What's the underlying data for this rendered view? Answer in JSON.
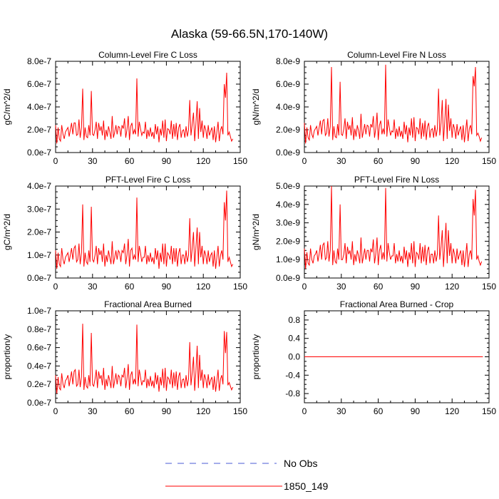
{
  "figure_title": "Alaska (59-66.5N,170-140W)",
  "legend": [
    {
      "label": "No Obs",
      "style": "dashed",
      "color": "#4a5bd4"
    },
    {
      "label": "1850_149",
      "style": "solid",
      "color": "#ff0000"
    }
  ],
  "series_color": "#ff0000",
  "chart_data": [
    {
      "type": "line",
      "title": "Column-Level Fire C Loss",
      "ylabel": "gC/m^2/d",
      "xlim": [
        0,
        150
      ],
      "ylim": [
        0,
        8e-07
      ],
      "xticks": [
        "0",
        "30",
        "60",
        "90",
        "120",
        "150"
      ],
      "yticks": [
        "0.0e-7",
        "2.0e-7",
        "4.0e-7",
        "6.0e-7",
        "8.0e-7"
      ],
      "x_start": 0,
      "series": [
        {
          "name": "1850_149",
          "values": [
            2.4e-07,
            8e-08,
            2.2e-07,
            1.2e-07,
            1e-07,
            2.4e-07,
            1.6e-07,
            1.2e-07,
            1.8e-07,
            2e-07,
            2.2e-07,
            1.4e-07,
            2e-07,
            2.6e-07,
            1.6e-07,
            2.6e-07,
            2.6e-07,
            1.5e-07,
            1.6e-07,
            2.9e-07,
            1.3e-07,
            2.2e-07,
            5.6e-07,
            1.1e-07,
            2.2e-07,
            1.4e-07,
            1.3e-07,
            2.4e-07,
            1.5e-07,
            5.4e-07,
            1.6e-07,
            1.5e-07,
            2e-07,
            2.7e-07,
            1.2e-07,
            2.6e-07,
            1.9e-07,
            2.3e-07,
            1.5e-07,
            2.8e-07,
            1.1e-07,
            2e-07,
            1.4e-07,
            2.3e-07,
            1.8e-07,
            1.2e-07,
            3.2e-07,
            1.3e-07,
            1.8e-07,
            2.4e-07,
            1.6e-07,
            2.3e-07,
            2.2e-07,
            1.4e-07,
            2.4e-07,
            2.1e-07,
            3e-07,
            1.3e-07,
            2e-07,
            3.2e-07,
            1.1e-07,
            2.3e-07,
            2.6e-07,
            1.6e-07,
            2e-07,
            1.6e-07,
            6.5e-07,
            1.4e-07,
            2.7e-07,
            2.1e-07,
            1.5e-07,
            1.8e-07,
            1.7e-07,
            2.7e-07,
            1.2e-07,
            2e-07,
            1.4e-07,
            2.2e-07,
            1.4e-07,
            1.8e-07,
            1.2e-07,
            2.5e-07,
            1.6e-07,
            2.3e-07,
            9e-08,
            2.1e-07,
            1.5e-07,
            2.8e-07,
            1.3e-07,
            2.9e-07,
            1e-07,
            2.1e-07,
            2e-07,
            1.6e-07,
            2.8e-07,
            1.2e-07,
            2.5e-07,
            1.4e-07,
            2.6e-07,
            1.1e-07,
            2.2e-07,
            2.5e-07,
            1.3e-07,
            1.9e-07,
            2e-07,
            1.3e-07,
            2.3e-07,
            1.4e-07,
            2e-07,
            4.6e-07,
            1.5e-07,
            2.5e-07,
            3.5e-07,
            1e-07,
            2.5e-07,
            4.5e-07,
            1.2e-07,
            3.9e-07,
            1.8e-07,
            2.8e-07,
            1.3e-07,
            2.4e-07,
            2e-07,
            1.2e-07,
            2.4e-07,
            1.5e-07,
            1.9e-07,
            2.2e-07,
            1.1e-07,
            2.3e-07,
            9e-08,
            1.8e-07,
            2.7e-07,
            1e-07,
            2e-07,
            2.3e-07,
            1.6e-07,
            6e-07,
            4.8e-07,
            7e-07,
            1.5e-07,
            1.8e-07,
            1.4e-07,
            1e-07,
            1.2e-07
          ]
        }
      ]
    },
    {
      "type": "line",
      "title": "Column-Level Fire N Loss",
      "ylabel": "gN/m^2/d",
      "xlim": [
        0,
        150
      ],
      "ylim": [
        0,
        8e-09
      ],
      "xticks": [
        "0",
        "30",
        "60",
        "90",
        "120",
        "150"
      ],
      "yticks": [
        "0.0e-9",
        "2.0e-9",
        "4.0e-9",
        "6.0e-9",
        "8.0e-9"
      ],
      "x_start": 0,
      "series": [
        {
          "name": "1850_149",
          "values": [
            2.6e-09,
            8e-10,
            2.2e-09,
            1.3e-09,
            1.1e-09,
            2.4e-09,
            1.6e-09,
            1.3e-09,
            1.9e-09,
            2.1e-09,
            2.3e-09,
            1.5e-09,
            2.2e-09,
            2.8e-09,
            1.6e-09,
            2.8e-09,
            2.9e-09,
            1.5e-09,
            1.7e-09,
            3e-09,
            1.4e-09,
            2.3e-09,
            7.5e-09,
            1.1e-09,
            2.3e-09,
            1.4e-09,
            1.3e-09,
            2.5e-09,
            1.5e-09,
            6.2e-09,
            1.6e-09,
            1.5e-09,
            2.1e-09,
            3e-09,
            1.2e-09,
            2.7e-09,
            2e-09,
            2.4e-09,
            1.5e-09,
            3.1e-09,
            1.1e-09,
            2.1e-09,
            1.4e-09,
            2.4e-09,
            1.9e-09,
            1.2e-09,
            3.4e-09,
            1.3e-09,
            1.9e-09,
            2.5e-09,
            1.6e-09,
            2.4e-09,
            2.3e-09,
            1.4e-09,
            2.5e-09,
            2.2e-09,
            3.2e-09,
            1.3e-09,
            2.1e-09,
            3.5e-09,
            1.1e-09,
            2.4e-09,
            2.8e-09,
            1.6e-09,
            2.1e-09,
            1.6e-09,
            7.7e-09,
            1.4e-09,
            2.9e-09,
            2.2e-09,
            1.5e-09,
            1.9e-09,
            1.8e-09,
            2.9e-09,
            1.2e-09,
            2.1e-09,
            1.4e-09,
            2.3e-09,
            1.4e-09,
            1.9e-09,
            1.2e-09,
            2.7e-09,
            1.6e-09,
            2.4e-09,
            9e-10,
            2.2e-09,
            1.5e-09,
            3e-09,
            1.3e-09,
            3.1e-09,
            1e-09,
            2.2e-09,
            2.1e-09,
            1.6e-09,
            3e-09,
            1.2e-09,
            2.6e-09,
            1.4e-09,
            2.8e-09,
            1.1e-09,
            2.3e-09,
            2.6e-09,
            1.3e-09,
            2e-09,
            2.1e-09,
            1.3e-09,
            2.4e-09,
            1.4e-09,
            2.1e-09,
            5.6e-09,
            1.5e-09,
            2.6e-09,
            4.6e-09,
            1e-09,
            2.6e-09,
            4.7e-09,
            1.2e-09,
            4.2e-09,
            1.9e-09,
            3e-09,
            1.3e-09,
            2.5e-09,
            2.1e-09,
            1.2e-09,
            2.5e-09,
            1.5e-09,
            2e-09,
            2.3e-09,
            1.1e-09,
            2.4e-09,
            9e-10,
            1.9e-09,
            2.9e-09,
            1e-09,
            2.1e-09,
            2.4e-09,
            1.6e-09,
            6.7e-09,
            5.8e-09,
            7.5e-09,
            1.5e-09,
            1.7e-09,
            1.4e-09,
            1e-09,
            1.3e-09
          ]
        }
      ]
    },
    {
      "type": "line",
      "title": "PFT-Level Fire C Loss",
      "ylabel": "gC/m^2/d",
      "xlim": [
        0,
        150
      ],
      "ylim": [
        0,
        4e-07
      ],
      "xticks": [
        "0",
        "30",
        "60",
        "90",
        "120",
        "150"
      ],
      "yticks": [
        "0.0e-7",
        "1.0e-7",
        "2.0e-7",
        "3.0e-7",
        "4.0e-7"
      ],
      "x_start": 0,
      "series": [
        {
          "name": "1850_149",
          "values": [
            1.2e-07,
            4e-08,
            1.1e-07,
            6e-08,
            5e-08,
            1.3e-07,
            8e-08,
            6e-08,
            9e-08,
            1e-07,
            1.1e-07,
            7e-08,
            1e-07,
            1.3e-07,
            8e-08,
            1.3e-07,
            1.4e-07,
            7e-08,
            8e-08,
            1.5e-07,
            6e-08,
            1.1e-07,
            3.2e-07,
            5e-08,
            1.1e-07,
            7e-08,
            6e-08,
            1.2e-07,
            7e-08,
            3.1e-07,
            8e-08,
            7e-08,
            1e-07,
            1.4e-07,
            6e-08,
            1.3e-07,
            1e-07,
            1.2e-07,
            7e-08,
            1.5e-07,
            5e-08,
            1e-07,
            7e-08,
            1.2e-07,
            9e-08,
            6e-08,
            1.6e-07,
            6e-08,
            9e-08,
            1.2e-07,
            8e-08,
            1.2e-07,
            1.1e-07,
            7e-08,
            1.2e-07,
            1.1e-07,
            1.5e-07,
            6e-08,
            1e-07,
            1.7e-07,
            5e-08,
            1.2e-07,
            1.3e-07,
            8e-08,
            1e-07,
            8e-08,
            3.5e-07,
            7e-08,
            1.4e-07,
            1.1e-07,
            7e-08,
            9e-08,
            9e-08,
            1.4e-07,
            6e-08,
            1e-07,
            7e-08,
            1.1e-07,
            7e-08,
            9e-08,
            6e-08,
            1.3e-07,
            8e-08,
            1.2e-07,
            4e-08,
            1.1e-07,
            7e-08,
            1.5e-07,
            6e-08,
            1.5e-07,
            5e-08,
            1.1e-07,
            1e-07,
            8e-08,
            1.4e-07,
            6e-08,
            1.3e-07,
            7e-08,
            1.3e-07,
            5e-08,
            1.1e-07,
            1.3e-07,
            6e-08,
            1e-07,
            1e-07,
            6e-08,
            1.2e-07,
            7e-08,
            1e-07,
            2.6e-07,
            7e-08,
            1.3e-07,
            2e-07,
            5e-08,
            1.3e-07,
            2.2e-07,
            6e-08,
            2e-07,
            9e-08,
            1.4e-07,
            6e-08,
            1.2e-07,
            1e-07,
            6e-08,
            1.2e-07,
            7e-08,
            1e-07,
            1.1e-07,
            5e-08,
            1.2e-07,
            4e-08,
            9e-08,
            1.4e-07,
            5e-08,
            1e-07,
            1.2e-07,
            8e-08,
            3.3e-07,
            2.5e-07,
            3.8e-07,
            7e-08,
            9e-08,
            7e-08,
            5e-08,
            6e-08
          ]
        }
      ]
    },
    {
      "type": "line",
      "title": "PFT-Level Fire N Loss",
      "ylabel": "gN/m^2/d",
      "xlim": [
        0,
        150
      ],
      "ylim": [
        0,
        5e-09
      ],
      "xticks": [
        "0",
        "30",
        "60",
        "90",
        "120",
        "150"
      ],
      "yticks": [
        "0.0e-9",
        "1.0e-9",
        "2.0e-9",
        "3.0e-9",
        "4.0e-9",
        "5.0e-9"
      ],
      "x_start": 0,
      "series": [
        {
          "name": "1850_149",
          "values": [
            1.6e-09,
            5e-10,
            1.4e-09,
            8e-10,
            7e-10,
            1.6e-09,
            1e-09,
            8e-10,
            1.2e-09,
            1.3e-09,
            1.5e-09,
            9e-10,
            1.3e-09,
            1.8e-09,
            1e-09,
            1.8e-09,
            1.9e-09,
            1e-09,
            1.1e-09,
            2e-09,
            9e-10,
            1.5e-09,
            5e-09,
            7e-10,
            1.5e-09,
            9e-10,
            8e-10,
            1.6e-09,
            1e-09,
            4e-09,
            1e-09,
            1e-09,
            1.3e-09,
            1.9e-09,
            8e-10,
            1.7e-09,
            1.3e-09,
            1.5e-09,
            1e-09,
            2e-09,
            7e-10,
            1.3e-09,
            9e-10,
            1.5e-09,
            1.2e-09,
            8e-10,
            2.2e-09,
            8e-10,
            1.2e-09,
            1.6e-09,
            1e-09,
            1.5e-09,
            1.5e-09,
            9e-10,
            1.6e-09,
            1.4e-09,
            2.1e-09,
            8e-10,
            1.3e-09,
            2.2e-09,
            7e-10,
            1.5e-09,
            1.8e-09,
            1e-09,
            1.4e-09,
            1e-09,
            4.9e-09,
            9e-10,
            1.9e-09,
            1.4e-09,
            1e-09,
            1.2e-09,
            1.2e-09,
            1.9e-09,
            8e-10,
            1.3e-09,
            9e-10,
            1.5e-09,
            9e-10,
            1.2e-09,
            8e-10,
            1.7e-09,
            1e-09,
            1.5e-09,
            6e-10,
            1.4e-09,
            1e-09,
            1.9e-09,
            8e-10,
            2e-09,
            6e-10,
            1.4e-09,
            1.3e-09,
            1e-09,
            1.9e-09,
            8e-10,
            1.7e-09,
            9e-10,
            1.8e-09,
            7e-10,
            1.5e-09,
            1.7e-09,
            8e-10,
            1.3e-09,
            1.3e-09,
            8e-10,
            1.5e-09,
            9e-10,
            1.3e-09,
            3.4e-09,
            1e-09,
            1.7e-09,
            2.6e-09,
            6e-10,
            1.7e-09,
            3e-09,
            8e-10,
            2.6e-09,
            1.2e-09,
            1.9e-09,
            8e-10,
            1.6e-09,
            1.3e-09,
            8e-10,
            1.6e-09,
            1e-09,
            1.3e-09,
            1.5e-09,
            7e-10,
            1.5e-09,
            6e-10,
            1.2e-09,
            1.9e-09,
            6e-10,
            1.3e-09,
            1.5e-09,
            1e-09,
            4.3e-09,
            3.4e-09,
            4.8e-09,
            1e-09,
            1.2e-09,
            9e-10,
            7e-10,
            9e-10
          ]
        }
      ]
    },
    {
      "type": "line",
      "title": "Fractional Area Burned",
      "ylabel": "proportion/y",
      "xlim": [
        0,
        150
      ],
      "ylim": [
        0,
        1e-07
      ],
      "xticks": [
        "0",
        "30",
        "60",
        "90",
        "120",
        "150"
      ],
      "yticks": [
        "0.0e-7",
        "0.2e-7",
        "0.4e-7",
        "0.6e-7",
        "0.8e-7",
        "1.0e-7"
      ],
      "x_start": 0,
      "series": [
        {
          "name": "1850_149",
          "values": [
            3e-08,
            1e-08,
            2.8e-08,
            1.6e-08,
            1.4e-08,
            3.2e-08,
            2e-08,
            1.6e-08,
            2.4e-08,
            2.6e-08,
            3e-08,
            1.8e-08,
            2.6e-08,
            3.4e-08,
            2e-08,
            3.4e-08,
            3.6e-08,
            1.8e-08,
            2e-08,
            3.6e-08,
            1.7e-08,
            2.8e-08,
            8.6e-08,
            1.4e-08,
            2.8e-08,
            1.8e-08,
            1.6e-08,
            3e-08,
            1.8e-08,
            7.6e-08,
            2e-08,
            1.8e-08,
            2.6e-08,
            3.6e-08,
            1.6e-08,
            3.4e-08,
            2.6e-08,
            3e-08,
            1.9e-08,
            3.8e-08,
            1.4e-08,
            2.6e-08,
            1.8e-08,
            3e-08,
            2.4e-08,
            1.6e-08,
            4e-08,
            1.6e-08,
            2.4e-08,
            3.2e-08,
            2e-08,
            3e-08,
            2.8e-08,
            1.8e-08,
            3e-08,
            2.8e-08,
            3.8e-08,
            1.6e-08,
            2.6e-08,
            4.2e-08,
            1.4e-08,
            3e-08,
            3.4e-08,
            2e-08,
            2.6e-08,
            2e-08,
            8.5e-08,
            1.8e-08,
            3.6e-08,
            2.8e-08,
            1.9e-08,
            2.4e-08,
            2.3e-08,
            3.6e-08,
            1.6e-08,
            2.6e-08,
            1.8e-08,
            2.9e-08,
            1.8e-08,
            2.4e-08,
            1.6e-08,
            3.3e-08,
            2e-08,
            3e-08,
            1.2e-08,
            2.8e-08,
            1.9e-08,
            3.7e-08,
            1.6e-08,
            3.8e-08,
            1.3e-08,
            2.8e-08,
            2.6e-08,
            2e-08,
            3.6e-08,
            1.6e-08,
            3.3e-08,
            1.8e-08,
            3.4e-08,
            1.4e-08,
            2.9e-08,
            3.3e-08,
            1.6e-08,
            2.5e-08,
            2.6e-08,
            1.6e-08,
            3e-08,
            1.8e-08,
            2.6e-08,
            6.6e-08,
            1.9e-08,
            3.3e-08,
            5e-08,
            1.3e-08,
            3.3e-08,
            6.2e-08,
            1.6e-08,
            5.2e-08,
            2.4e-08,
            3.6e-08,
            1.6e-08,
            3.1e-08,
            2.6e-08,
            1.6e-08,
            3.1e-08,
            1.9e-08,
            2.5e-08,
            2.8e-08,
            1.4e-08,
            2.9e-08,
            1.2e-08,
            2.4e-08,
            3.6e-08,
            1.3e-08,
            2.6e-08,
            3e-08,
            2e-08,
            7.8e-08,
            5.4e-08,
            7.7e-08,
            1.9e-08,
            2.2e-08,
            1.8e-08,
            1.4e-08,
            1.7e-08
          ]
        }
      ]
    },
    {
      "type": "line",
      "title": "Fractional Area Burned - Crop",
      "ylabel": "proportion/y",
      "xlim": [
        0,
        150
      ],
      "ylim": [
        -1,
        1
      ],
      "xticks": [
        "0",
        "30",
        "60",
        "90",
        "120",
        "150"
      ],
      "yticks": [
        "-0.8",
        "-0.4",
        "0.0",
        "0.4",
        "0.8"
      ],
      "ytick_values": [
        -0.8,
        -0.4,
        0.0,
        0.4,
        0.8
      ],
      "x_start": 0,
      "series": [
        {
          "name": "1850_149",
          "constant": 0,
          "x_end": 145
        }
      ]
    }
  ]
}
